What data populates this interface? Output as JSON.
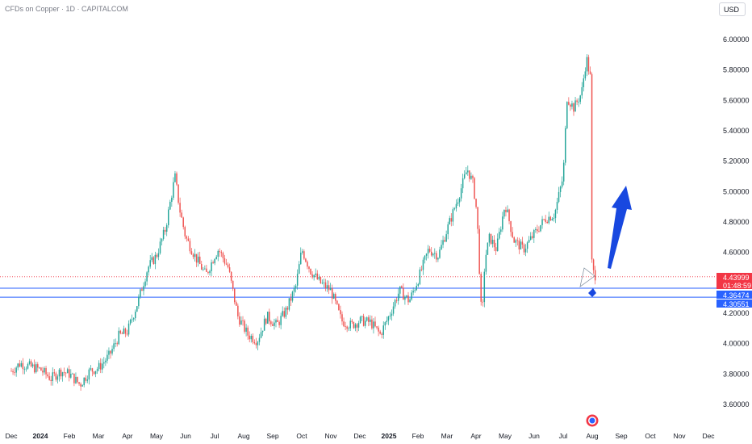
{
  "header": {
    "title": "CFDs on Copper · 1D · CAPITALCOM"
  },
  "toolbar": {
    "currency_label": "USD"
  },
  "colors": {
    "up": "#26a69a",
    "down": "#ef5350",
    "current_badge": "#f23645",
    "level_line": "#2962ff",
    "level_badge": "#2962ff",
    "arrow": "#1848e0",
    "grid": "#f0f3fa",
    "axis_text": "#131722"
  },
  "icons": {
    "arrow_up": "arrow-up-icon",
    "arrow_down": "arrow-down-icon",
    "event": "event-icon"
  },
  "chart_data": {
    "type": "candlestick",
    "title": "CFDs on Copper · 1D · CAPITALCOM",
    "ylim": [
      3.5,
      6.1
    ],
    "y_ticks": [
      "6.00000",
      "5.80000",
      "5.60000",
      "5.40000",
      "5.20000",
      "5.00000",
      "4.80000",
      "4.60000",
      "4.40000",
      "4.20000",
      "4.00000",
      "3.80000",
      "3.60000"
    ],
    "x_ticks": [
      {
        "label": "Dec",
        "bold": false
      },
      {
        "label": "2024",
        "bold": true
      },
      {
        "label": "Feb",
        "bold": false
      },
      {
        "label": "Mar",
        "bold": false
      },
      {
        "label": "Apr",
        "bold": false
      },
      {
        "label": "May",
        "bold": false
      },
      {
        "label": "Jun",
        "bold": false
      },
      {
        "label": "Jul",
        "bold": false
      },
      {
        "label": "Aug",
        "bold": false
      },
      {
        "label": "Sep",
        "bold": false
      },
      {
        "label": "Oct",
        "bold": false
      },
      {
        "label": "Nov",
        "bold": false
      },
      {
        "label": "Dec",
        "bold": false
      },
      {
        "label": "2025",
        "bold": true
      },
      {
        "label": "Feb",
        "bold": false
      },
      {
        "label": "Mar",
        "bold": false
      },
      {
        "label": "Apr",
        "bold": false
      },
      {
        "label": "May",
        "bold": false
      },
      {
        "label": "Jun",
        "bold": false
      },
      {
        "label": "Jul",
        "bold": false
      },
      {
        "label": "Aug",
        "bold": false
      },
      {
        "label": "Sep",
        "bold": false
      },
      {
        "label": "Oct",
        "bold": false
      },
      {
        "label": "Nov",
        "bold": false
      },
      {
        "label": "Dec",
        "bold": false
      }
    ],
    "price_path": [
      [
        "2023-12-01",
        3.82
      ],
      [
        "2023-12-10",
        3.87
      ],
      [
        "2023-12-20",
        3.85
      ],
      [
        "2024-01-01",
        3.83
      ],
      [
        "2024-01-12",
        3.77
      ],
      [
        "2024-01-22",
        3.82
      ],
      [
        "2024-02-01",
        3.8
      ],
      [
        "2024-02-12",
        3.73
      ],
      [
        "2024-02-22",
        3.82
      ],
      [
        "2024-03-01",
        3.84
      ],
      [
        "2024-03-12",
        3.92
      ],
      [
        "2024-03-22",
        4.05
      ],
      [
        "2024-04-01",
        4.08
      ],
      [
        "2024-04-12",
        4.28
      ],
      [
        "2024-04-22",
        4.5
      ],
      [
        "2024-05-01",
        4.58
      ],
      [
        "2024-05-10",
        4.75
      ],
      [
        "2024-05-20",
        5.1
      ],
      [
        "2024-05-25",
        4.88
      ],
      [
        "2024-06-01",
        4.7
      ],
      [
        "2024-06-12",
        4.56
      ],
      [
        "2024-06-22",
        4.45
      ],
      [
        "2024-07-01",
        4.58
      ],
      [
        "2024-07-05",
        4.62
      ],
      [
        "2024-07-15",
        4.5
      ],
      [
        "2024-07-25",
        4.18
      ],
      [
        "2024-08-05",
        4.06
      ],
      [
        "2024-08-15",
        4.02
      ],
      [
        "2024-08-25",
        4.18
      ],
      [
        "2024-09-05",
        4.12
      ],
      [
        "2024-09-15",
        4.22
      ],
      [
        "2024-09-25",
        4.38
      ],
      [
        "2024-10-01",
        4.62
      ],
      [
        "2024-10-10",
        4.48
      ],
      [
        "2024-10-20",
        4.4
      ],
      [
        "2024-11-01",
        4.35
      ],
      [
        "2024-11-12",
        4.15
      ],
      [
        "2024-11-22",
        4.12
      ],
      [
        "2024-12-01",
        4.15
      ],
      [
        "2024-12-12",
        4.14
      ],
      [
        "2024-12-22",
        4.06
      ],
      [
        "2025-01-01",
        4.18
      ],
      [
        "2025-01-12",
        4.35
      ],
      [
        "2025-01-22",
        4.28
      ],
      [
        "2025-02-01",
        4.42
      ],
      [
        "2025-02-12",
        4.62
      ],
      [
        "2025-02-22",
        4.58
      ],
      [
        "2025-03-01",
        4.75
      ],
      [
        "2025-03-12",
        4.95
      ],
      [
        "2025-03-22",
        5.15
      ],
      [
        "2025-03-28",
        5.05
      ],
      [
        "2025-04-02",
        4.85
      ],
      [
        "2025-04-07",
        4.12
      ],
      [
        "2025-04-10",
        4.55
      ],
      [
        "2025-04-15",
        4.7
      ],
      [
        "2025-04-22",
        4.62
      ],
      [
        "2025-05-01",
        4.92
      ],
      [
        "2025-05-10",
        4.68
      ],
      [
        "2025-05-20",
        4.62
      ],
      [
        "2025-06-01",
        4.72
      ],
      [
        "2025-06-12",
        4.82
      ],
      [
        "2025-06-22",
        4.85
      ],
      [
        "2025-07-01",
        5.1
      ],
      [
        "2025-07-05",
        5.62
      ],
      [
        "2025-07-12",
        5.55
      ],
      [
        "2025-07-20",
        5.65
      ],
      [
        "2025-07-25",
        5.88
      ],
      [
        "2025-07-29",
        5.75
      ],
      [
        "2025-07-30",
        4.62
      ],
      [
        "2025-08-01",
        4.48
      ],
      [
        "2025-08-05",
        4.44
      ]
    ],
    "current_price": {
      "value": "4.43999",
      "countdown": "01:48:59"
    },
    "levels": [
      {
        "value": "4.36474"
      },
      {
        "value": "4.30551"
      }
    ]
  }
}
